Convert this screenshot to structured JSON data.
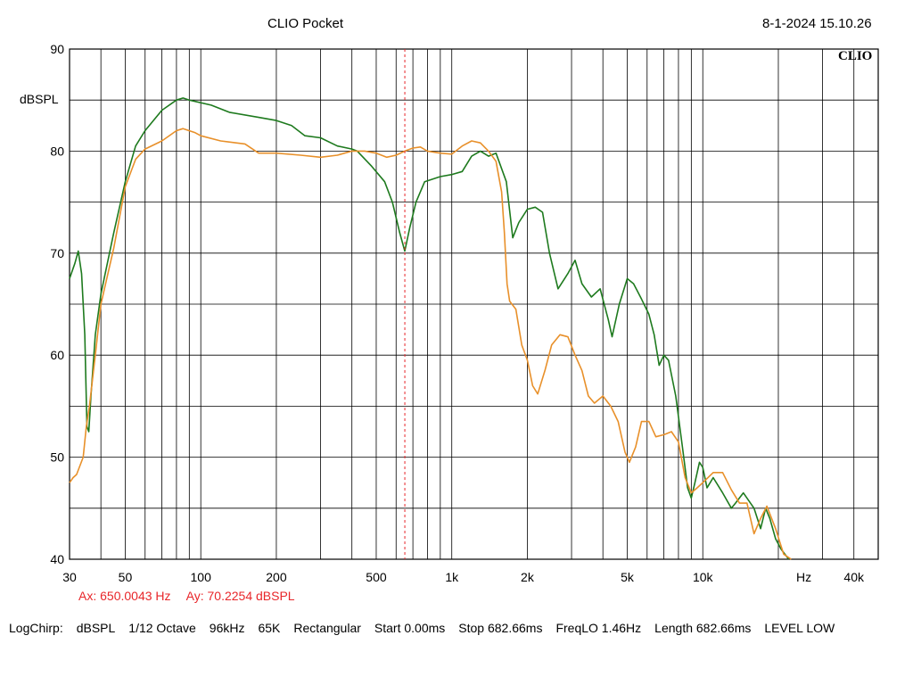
{
  "header": {
    "app_title": "CLIO Pocket",
    "timestamp": "8-1-2024 15.10.26",
    "logo": "CLIO"
  },
  "cursor": {
    "ax": "Ax: 650.0043 Hz",
    "ay": "Ay: 70.2254 dBSPL",
    "color": "#e8262a"
  },
  "footer": {
    "items": [
      "LogChirp:",
      "dBSPL",
      "1/12 Octave",
      "96kHz",
      "65K",
      "Rectangular",
      "Start 0.00ms",
      "Stop 682.66ms",
      "FreqLO 1.46Hz",
      "Length 682.66ms",
      "LEVEL LOW"
    ]
  },
  "chart_data": {
    "type": "line",
    "xscale": "log",
    "xlim": [
      30,
      50000
    ],
    "ylim": [
      40,
      90
    ],
    "ylabel": "dBSPL",
    "xunit": "Hz",
    "grid": true,
    "x_ticks": [
      {
        "v": 30,
        "label": "30"
      },
      {
        "v": 50,
        "label": "50"
      },
      {
        "v": 100,
        "label": "100"
      },
      {
        "v": 200,
        "label": "200"
      },
      {
        "v": 500,
        "label": "500"
      },
      {
        "v": 1000,
        "label": "1k"
      },
      {
        "v": 2000,
        "label": "2k"
      },
      {
        "v": 5000,
        "label": "5k"
      },
      {
        "v": 10000,
        "label": "10k"
      },
      {
        "v": 40000,
        "label": "40k"
      }
    ],
    "y_ticks": [
      {
        "v": 90,
        "label": "90"
      },
      {
        "v": 80,
        "label": "80"
      },
      {
        "v": 70,
        "label": "70"
      },
      {
        "v": 60,
        "label": "60"
      },
      {
        "v": 50,
        "label": "50"
      },
      {
        "v": 40,
        "label": "40"
      }
    ],
    "cursor_x": 650,
    "series": [
      {
        "color": "#1e7a1e",
        "points": [
          [
            30,
            67.5
          ],
          [
            31.5,
            69
          ],
          [
            32.5,
            70.2
          ],
          [
            33.5,
            68
          ],
          [
            34.5,
            62
          ],
          [
            35.2,
            53
          ],
          [
            35.8,
            52.5
          ],
          [
            36.5,
            56
          ],
          [
            38,
            62
          ],
          [
            40,
            66
          ],
          [
            45,
            72
          ],
          [
            50,
            77
          ],
          [
            55,
            80.5
          ],
          [
            60,
            82
          ],
          [
            70,
            84
          ],
          [
            80,
            85
          ],
          [
            85,
            85.2
          ],
          [
            90,
            85
          ],
          [
            110,
            84.5
          ],
          [
            130,
            83.8
          ],
          [
            170,
            83.3
          ],
          [
            200,
            83
          ],
          [
            230,
            82.5
          ],
          [
            260,
            81.5
          ],
          [
            300,
            81.3
          ],
          [
            350,
            80.5
          ],
          [
            400,
            80.2
          ],
          [
            420,
            80
          ],
          [
            480,
            78.5
          ],
          [
            540,
            77
          ],
          [
            580,
            75
          ],
          [
            620,
            72
          ],
          [
            650,
            70.2
          ],
          [
            680,
            72.5
          ],
          [
            720,
            75
          ],
          [
            780,
            77
          ],
          [
            900,
            77.5
          ],
          [
            1000,
            77.7
          ],
          [
            1100,
            78
          ],
          [
            1200,
            79.5
          ],
          [
            1300,
            80
          ],
          [
            1400,
            79.5
          ],
          [
            1500,
            79.8
          ],
          [
            1650,
            77
          ],
          [
            1750,
            71.5
          ],
          [
            1850,
            73
          ],
          [
            2000,
            74.3
          ],
          [
            2150,
            74.5
          ],
          [
            2300,
            74
          ],
          [
            2450,
            70
          ],
          [
            2650,
            66.5
          ],
          [
            2900,
            68
          ],
          [
            3100,
            69.3
          ],
          [
            3300,
            67
          ],
          [
            3600,
            65.7
          ],
          [
            3900,
            66.5
          ],
          [
            4200,
            63.5
          ],
          [
            4350,
            61.8
          ],
          [
            4650,
            65
          ],
          [
            5000,
            67.5
          ],
          [
            5300,
            67
          ],
          [
            5700,
            65.5
          ],
          [
            6100,
            64
          ],
          [
            6400,
            62
          ],
          [
            6700,
            59
          ],
          [
            7000,
            60
          ],
          [
            7300,
            59.5
          ],
          [
            7800,
            56
          ],
          [
            8300,
            51
          ],
          [
            8700,
            47
          ],
          [
            9000,
            46
          ],
          [
            9300,
            47.5
          ],
          [
            9700,
            49.5
          ],
          [
            10000,
            49
          ],
          [
            10400,
            47
          ],
          [
            11000,
            48
          ],
          [
            12000,
            46.5
          ],
          [
            13000,
            45
          ],
          [
            13500,
            45.5
          ],
          [
            14500,
            46.5
          ],
          [
            16000,
            45
          ],
          [
            17000,
            43
          ],
          [
            17800,
            45
          ],
          [
            18500,
            44
          ],
          [
            19500,
            42
          ],
          [
            20500,
            41
          ],
          [
            22000,
            40
          ]
        ]
      },
      {
        "color": "#e8902a",
        "points": [
          [
            30,
            47.5
          ],
          [
            31,
            48
          ],
          [
            32,
            48.3
          ],
          [
            34,
            50
          ],
          [
            35,
            53
          ],
          [
            36,
            55
          ],
          [
            38,
            60
          ],
          [
            40,
            65
          ],
          [
            45,
            70.5
          ],
          [
            50,
            76.5
          ],
          [
            55,
            79.2
          ],
          [
            60,
            80.2
          ],
          [
            70,
            81
          ],
          [
            80,
            82
          ],
          [
            85,
            82.2
          ],
          [
            95,
            81.8
          ],
          [
            100,
            81.5
          ],
          [
            120,
            81
          ],
          [
            150,
            80.7
          ],
          [
            170,
            79.8
          ],
          [
            200,
            79.8
          ],
          [
            250,
            79.6
          ],
          [
            300,
            79.4
          ],
          [
            350,
            79.6
          ],
          [
            400,
            80
          ],
          [
            450,
            80
          ],
          [
            500,
            79.8
          ],
          [
            550,
            79.4
          ],
          [
            600,
            79.6
          ],
          [
            650,
            80
          ],
          [
            700,
            80.3
          ],
          [
            750,
            80.4
          ],
          [
            800,
            80
          ],
          [
            900,
            79.8
          ],
          [
            1000,
            79.7
          ],
          [
            1100,
            80.5
          ],
          [
            1200,
            81
          ],
          [
            1300,
            80.8
          ],
          [
            1400,
            80
          ],
          [
            1500,
            79
          ],
          [
            1580,
            76
          ],
          [
            1620,
            72
          ],
          [
            1660,
            67
          ],
          [
            1700,
            65.3
          ],
          [
            1800,
            64.5
          ],
          [
            1900,
            61
          ],
          [
            2000,
            59.5
          ],
          [
            2100,
            57
          ],
          [
            2200,
            56.2
          ],
          [
            2350,
            58.5
          ],
          [
            2500,
            61
          ],
          [
            2700,
            62
          ],
          [
            2900,
            61.8
          ],
          [
            3100,
            60
          ],
          [
            3300,
            58.5
          ],
          [
            3500,
            56
          ],
          [
            3700,
            55.3
          ],
          [
            4000,
            56
          ],
          [
            4300,
            55
          ],
          [
            4600,
            53.5
          ],
          [
            4900,
            50.5
          ],
          [
            5100,
            49.5
          ],
          [
            5400,
            51
          ],
          [
            5700,
            53.5
          ],
          [
            6100,
            53.5
          ],
          [
            6500,
            52
          ],
          [
            7000,
            52.2
          ],
          [
            7500,
            52.5
          ],
          [
            8000,
            51.5
          ],
          [
            8500,
            48
          ],
          [
            9000,
            46.5
          ],
          [
            9500,
            47
          ],
          [
            10000,
            47.5
          ],
          [
            11000,
            48.5
          ],
          [
            12000,
            48.5
          ],
          [
            13000,
            46.8
          ],
          [
            14000,
            45.5
          ],
          [
            15000,
            45.5
          ],
          [
            16000,
            42.5
          ],
          [
            17000,
            44
          ],
          [
            18000,
            45.2
          ],
          [
            19500,
            43
          ],
          [
            21000,
            40.5
          ],
          [
            22500,
            40
          ]
        ]
      }
    ]
  }
}
